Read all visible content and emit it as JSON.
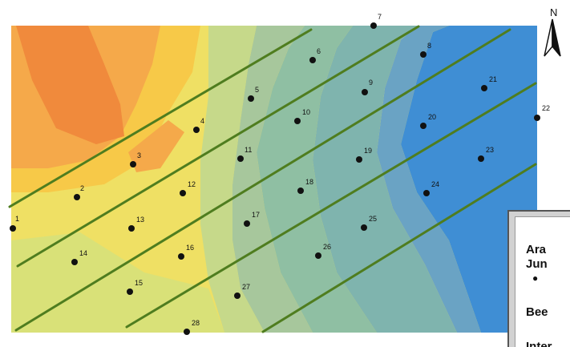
{
  "map": {
    "north_label": "N",
    "colors": {
      "orange": "#f08a3c",
      "light_orange": "#f5a94a",
      "yellow_orange": "#f7c948",
      "yellow": "#efe064",
      "pale_yellow_green": "#d9e178",
      "yellow_green": "#c6d98a",
      "green_gray": "#a7c79c",
      "sage": "#8fbfa3",
      "teal_gray": "#7fb4ae",
      "steel_blue": "#6aa3c4",
      "blue": "#3f8ed4",
      "transect_line": "#4f7d1f",
      "point": "#111111"
    },
    "points": [
      {
        "label": "1"
      },
      {
        "label": "2"
      },
      {
        "label": "3"
      },
      {
        "label": "4"
      },
      {
        "label": "5"
      },
      {
        "label": "6"
      },
      {
        "label": "7"
      },
      {
        "label": "8"
      },
      {
        "label": "9"
      },
      {
        "label": "10"
      },
      {
        "label": "11"
      },
      {
        "label": "12"
      },
      {
        "label": "13"
      },
      {
        "label": "14"
      },
      {
        "label": "15"
      },
      {
        "label": "16"
      },
      {
        "label": "17"
      },
      {
        "label": "18"
      },
      {
        "label": "19"
      },
      {
        "label": "20"
      },
      {
        "label": "21"
      },
      {
        "label": "22"
      },
      {
        "label": "23"
      },
      {
        "label": "24"
      },
      {
        "label": "25"
      },
      {
        "label": "26"
      },
      {
        "label": "27"
      },
      {
        "label": "28"
      }
    ]
  },
  "legend": {
    "line1": "Ara",
    "line2": "Jun",
    "symbol": "●",
    "line3": "Bee",
    "line4": "Inter"
  }
}
